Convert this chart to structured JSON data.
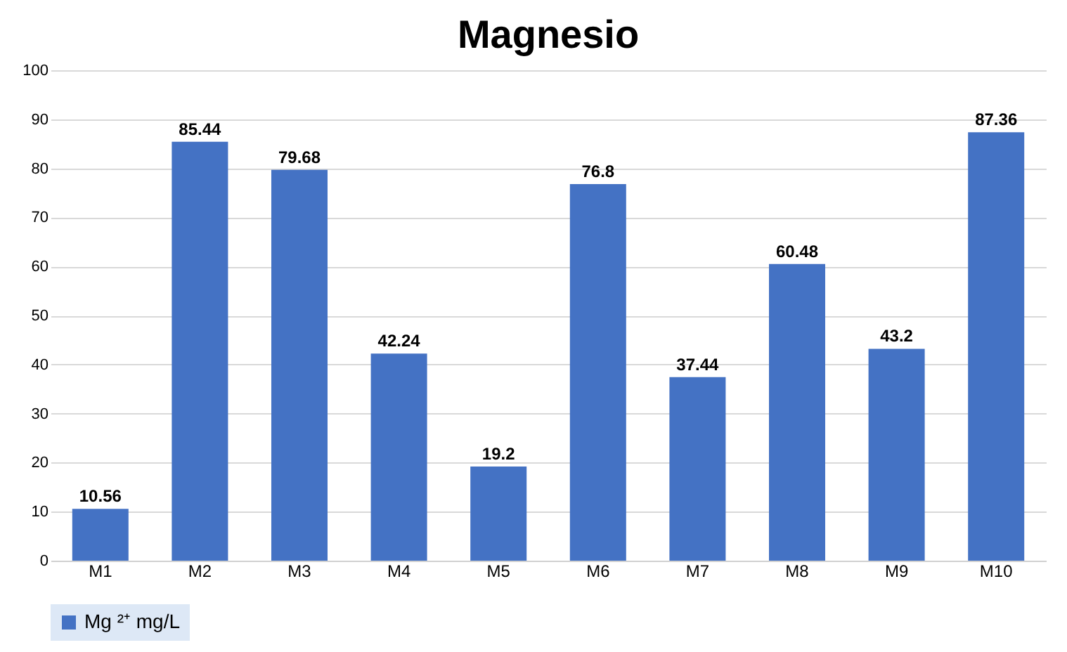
{
  "chart_data": {
    "type": "bar",
    "title": "Magnesio",
    "categories": [
      "M1",
      "M2",
      "M3",
      "M4",
      "M5",
      "M6",
      "M7",
      "M8",
      "M9",
      "M10"
    ],
    "series": [
      {
        "name": "Mg ²⁺ mg/L",
        "color": "#4472c4",
        "values": [
          10.56,
          85.44,
          79.68,
          42.24,
          19.2,
          76.8,
          37.44,
          60.48,
          43.2,
          87.36
        ]
      }
    ],
    "ylim": [
      0,
      100
    ],
    "yticks": [
      0,
      10,
      20,
      30,
      40,
      50,
      60,
      70,
      80,
      90,
      100
    ],
    "grid": "y",
    "legend": "bottom",
    "data_labels": true
  }
}
